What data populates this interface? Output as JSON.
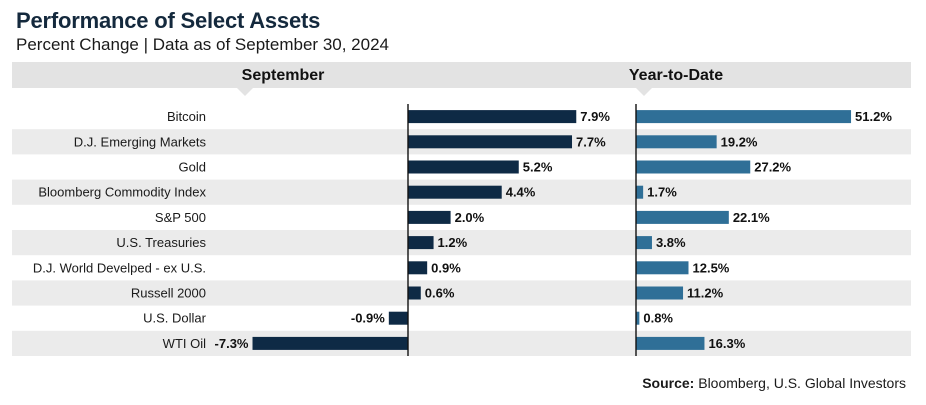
{
  "title": "Performance of Select Assets",
  "subtitle": "Percent Change | Data as of September 30, 2024",
  "source_label": "Source:",
  "source_text": "Bloomberg, U.S. Global Investors",
  "colors": {
    "september": "#0e2a45",
    "ytd": "#2f6f97",
    "header_band": "#e3e3e3",
    "row_band": "#ebebeb"
  },
  "chart_data": {
    "type": "bar",
    "orientation": "horizontal",
    "categories": [
      "Bitcoin",
      "D.J. Emerging Markets",
      "Gold",
      "Bloomberg Commodity Index",
      "S&P 500",
      "U.S. Treasuries",
      "D.J. World Develped - ex U.S.",
      "Russell 2000",
      "U.S. Dollar",
      "WTI Oil"
    ],
    "series": [
      {
        "name": "September",
        "values": [
          7.9,
          7.7,
          5.2,
          4.4,
          2.0,
          1.2,
          0.9,
          0.6,
          -0.9,
          -7.3
        ],
        "labels": [
          "7.9%",
          "7.7%",
          "5.2%",
          "4.4%",
          "2.0%",
          "1.2%",
          "0.9%",
          "0.6%",
          "-0.9%",
          "-7.3%"
        ]
      },
      {
        "name": "Year-to-Date",
        "values": [
          51.2,
          19.2,
          27.2,
          1.7,
          22.1,
          3.8,
          12.5,
          11.2,
          0.8,
          16.3
        ],
        "labels": [
          "51.2%",
          "19.2%",
          "27.2%",
          "1.7%",
          "22.1%",
          "3.8%",
          "12.5%",
          "11.2%",
          "0.8%",
          "16.3%"
        ]
      }
    ]
  }
}
